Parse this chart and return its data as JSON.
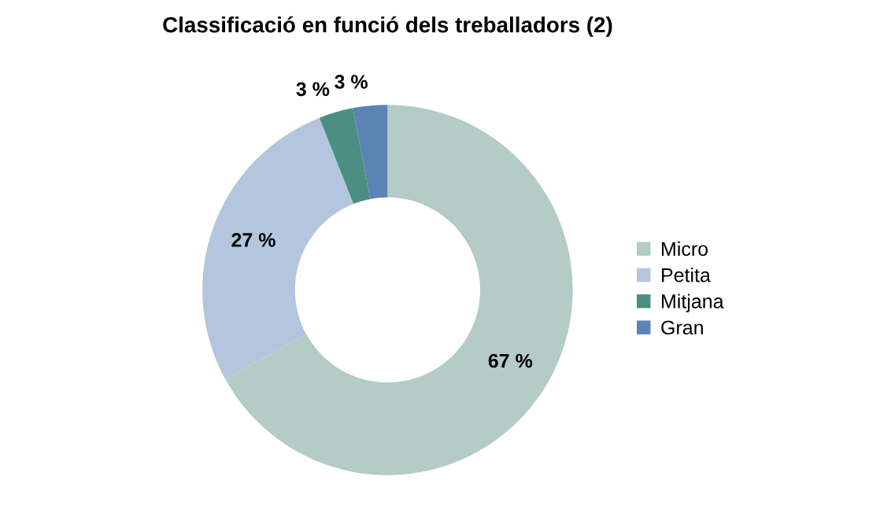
{
  "chart_data": {
    "type": "donut",
    "title": "Classificació en funció dels treballadors (2)",
    "categories": [
      "Micro",
      "Petita",
      "Mitjana",
      "Gran"
    ],
    "values": [
      67,
      27,
      3,
      3
    ],
    "colors": [
      "#b4cbc6",
      "#b3c6de",
      "#4a8f82",
      "#5b83b4"
    ],
    "value_labels": [
      "67 %",
      "27 %",
      "3 %",
      "3 %"
    ],
    "legend": "right"
  }
}
